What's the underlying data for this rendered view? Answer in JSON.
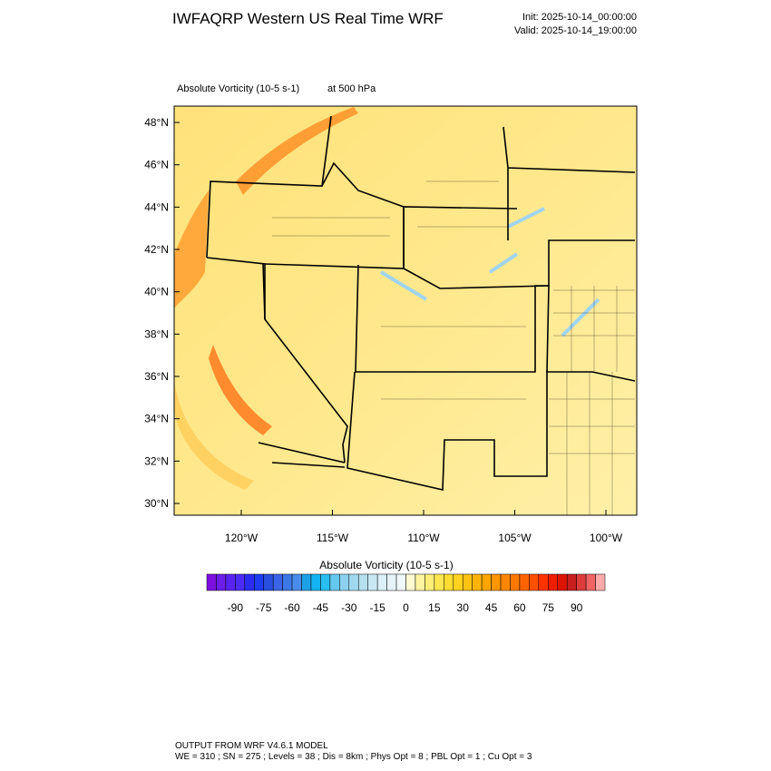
{
  "header": {
    "title": "IWFAQRP Western US Real Time WRF",
    "init": "Init: 2025-10-14_00:00:00",
    "valid": "Valid: 2025-10-14_19:00:00"
  },
  "map": {
    "field": "Absolute Vorticity   (10-5 s-1)",
    "level": "at   500 hPa",
    "lat_labels": [
      "48°N",
      "46°N",
      "44°N",
      "42°N",
      "40°N",
      "38°N",
      "36°N",
      "34°N",
      "32°N",
      "30°N"
    ],
    "lon_labels": [
      "120°W",
      "115°W",
      "110°W",
      "105°W",
      "100°W"
    ]
  },
  "colorbar": {
    "title": "Absolute Vorticity  (10-5 s-1)",
    "labels": [
      "-90",
      "-75",
      "-60",
      "-45",
      "-30",
      "-15",
      "0",
      "15",
      "30",
      "45",
      "60",
      "75",
      "90"
    ],
    "colors": [
      "#7d10e0",
      "#6a1ee6",
      "#5a23f0",
      "#4c2cf5",
      "#2a2df0",
      "#1e3cf0",
      "#2850e0",
      "#3c64e6",
      "#3c78e6",
      "#4a8cec",
      "#1ea0e6",
      "#14b4f0",
      "#28bef0",
      "#64c8f0",
      "#8cd2f0",
      "#a0d8f0",
      "#b4e0f0",
      "#c8e8f4",
      "#dcf0f8",
      "#e6f4fa",
      "#f0f8fc",
      "#fffad2",
      "#fff5a0",
      "#ffef78",
      "#ffe650",
      "#ffdc32",
      "#ffd21e",
      "#ffc314",
      "#ffb40a",
      "#ffa500",
      "#ff9600",
      "#ff8700",
      "#ff7800",
      "#ff6400",
      "#ff5000",
      "#ff3200",
      "#f01e00",
      "#dc1400",
      "#c81e1e",
      "#dc3c3c",
      "#f06464",
      "#ffaaaa"
    ]
  },
  "footer": {
    "line1": "OUTPUT FROM WRF V4.6.1 MODEL",
    "line2": "WE = 310 ; SN = 275 ; Levels = 38 ; Dis = 8km ; Phys Opt = 8 ; PBL Opt = 1 ; Cu Opt = 3"
  }
}
